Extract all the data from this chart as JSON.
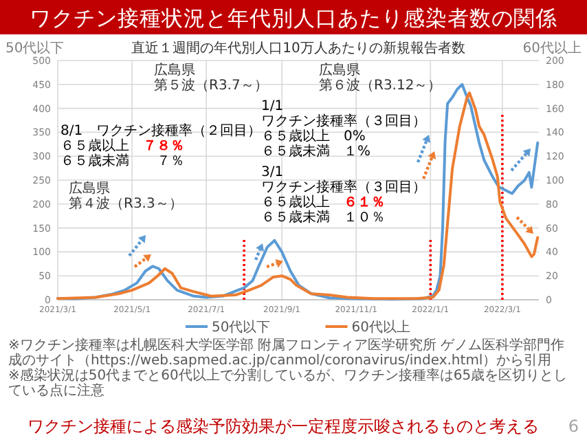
{
  "chart_data": {
    "type": "line",
    "title": "ワクチン接種状況と年代別人口あたり感染者数の関係",
    "subtitle": "直近１週間の年代別人口10万人あたりの新規報告者数",
    "ylabel": "50代以下",
    "y2label": "60代以上",
    "xlim": [
      "2021-03-01",
      "2022-03-31"
    ],
    "xticks": [
      {
        "value": "2021-03-01",
        "label": "2021/3/1"
      },
      {
        "value": "2021-05-01",
        "label": "2021/5/1"
      },
      {
        "value": "2021-07-01",
        "label": "2021/7/1"
      },
      {
        "value": "2021-09-01",
        "label": "2021/9/1"
      },
      {
        "value": "2021-11-01",
        "label": "2021/11/1"
      },
      {
        "value": "2022-01-01",
        "label": "2022/1/1"
      },
      {
        "value": "2022-03-01",
        "label": "2022/3/1"
      }
    ],
    "ylim": [
      0,
      500
    ],
    "yticks": [
      0,
      50,
      100,
      150,
      200,
      250,
      300,
      350,
      400,
      450,
      500
    ],
    "y2lim": [
      0,
      200
    ],
    "y2ticks": [
      0,
      20,
      40,
      60,
      80,
      100,
      120,
      140,
      160,
      180,
      200
    ],
    "grid": true,
    "legend": "bottom",
    "line_style": "solid",
    "series": [
      {
        "name": "50代以下",
        "color": "#5b9bd5",
        "x": [
          "2021-03-01",
          "2021-03-15",
          "2021-04-01",
          "2021-04-15",
          "2021-04-25",
          "2021-05-05",
          "2021-05-12",
          "2021-05-18",
          "2021-05-23",
          "2021-05-30",
          "2021-06-07",
          "2021-06-20",
          "2021-07-01",
          "2021-07-15",
          "2021-07-25",
          "2021-08-01",
          "2021-08-08",
          "2021-08-13",
          "2021-08-20",
          "2021-08-26",
          "2021-09-01",
          "2021-09-08",
          "2021-09-15",
          "2021-09-25",
          "2021-10-10",
          "2021-11-01",
          "2021-12-01",
          "2021-12-25",
          "2022-01-03",
          "2022-01-06",
          "2022-01-09",
          "2022-01-11",
          "2022-01-13",
          "2022-01-15",
          "2022-01-19",
          "2022-01-23",
          "2022-01-27",
          "2022-01-30",
          "2022-02-03",
          "2022-02-10",
          "2022-02-14",
          "2022-02-21",
          "2022-02-26",
          "2022-03-09",
          "2022-03-14",
          "2022-03-19",
          "2022-03-23",
          "2022-03-25",
          "2022-03-30"
        ],
        "values": [
          3,
          2,
          5,
          12,
          20,
          35,
          60,
          70,
          65,
          40,
          20,
          8,
          5,
          8,
          18,
          25,
          40,
          70,
          110,
          124,
          100,
          60,
          30,
          13,
          4,
          2,
          1,
          2,
          8,
          20,
          50,
          150,
          330,
          410,
          423,
          440,
          450,
          430,
          406,
          328,
          292,
          257,
          236,
          222,
          238,
          249,
          266,
          235,
          328
        ]
      },
      {
        "name": "60代以上",
        "color": "#ed7d31",
        "axis": "y2",
        "x": [
          "2021-03-01",
          "2021-04-01",
          "2021-04-20",
          "2021-05-01",
          "2021-05-15",
          "2021-05-22",
          "2021-05-28",
          "2021-06-03",
          "2021-06-10",
          "2021-06-20",
          "2021-07-05",
          "2021-07-25",
          "2021-08-05",
          "2021-08-15",
          "2021-08-25",
          "2021-09-01",
          "2021-09-08",
          "2021-09-13",
          "2021-09-25",
          "2021-10-10",
          "2021-10-25",
          "2021-11-15",
          "2021-12-20",
          "2022-01-03",
          "2022-01-08",
          "2022-01-12",
          "2022-01-19",
          "2022-01-25",
          "2022-01-31",
          "2022-02-02",
          "2022-02-07",
          "2022-02-10",
          "2022-02-14",
          "2022-02-21",
          "2022-02-25",
          "2022-02-27",
          "2022-03-04",
          "2022-03-12",
          "2022-03-19",
          "2022-03-25",
          "2022-03-27",
          "2022-03-30"
        ],
        "values": [
          1,
          2,
          5,
          8,
          14,
          20,
          26,
          22,
          10,
          7,
          3,
          4,
          8,
          12,
          19,
          20,
          17,
          12,
          5,
          4,
          2,
          1,
          1,
          2,
          8,
          29,
          110,
          145,
          169,
          173,
          159,
          145,
          138,
          117,
          103,
          82,
          68,
          57,
          47,
          36,
          38,
          52
        ]
      }
    ],
    "ref_lines": [
      {
        "axis": "x",
        "value": "2021-08-01",
        "color": "#ff0000",
        "line_style": "dotted"
      },
      {
        "axis": "x",
        "value": "2022-01-01",
        "color": "#ff0000",
        "line_style": "dotted"
      },
      {
        "axis": "x",
        "value": "2022-03-01",
        "color": "#ff0000",
        "line_style": "dotted"
      }
    ],
    "annotations": [
      "広島県",
      "第４波（R3.3～）",
      "広島県",
      "第５波（R3.7～）",
      "広島県",
      "第６波（R3.12～）",
      "8/1　ワクチン接種率（２回目）",
      "６５歳以上　**７８％**",
      "６５歳未満　　７％",
      "1/1",
      "ワクチン接種率（３回目）",
      "６５歳以上　0%",
      "６５歳未満　１%",
      "3/1",
      "ワクチン接種率（３回目）",
      "６５歳以上　**６１％**",
      "６５歳未満　１０％",
      "※ワクチン接種率は札幌医科大学医学部 附属フロンティア医学研究所 ゲノム医科学部門作成のサイト（https://web.sapmed.ac.jp/canmol/coronavirus/index.html）から引用",
      "※感染状況は50代までと60代以上で分割しているが、ワクチン接種率は65歳を区切りとしている点に注意",
      "ワクチン接種による感染予防効果が一定程度示唆されるものと考える",
      "6"
    ]
  }
}
